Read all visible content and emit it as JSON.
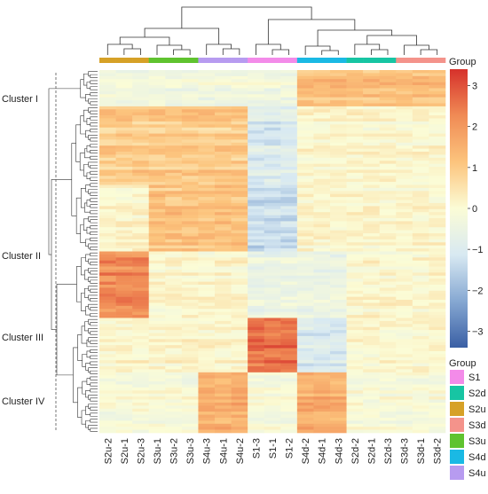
{
  "chart_data": {
    "type": "heatmap",
    "columns": [
      "S2u-2",
      "S2u-1",
      "S2u-3",
      "S3u-1",
      "S3u-2",
      "S3u-3",
      "S4u-3",
      "S4u-1",
      "S4u-2",
      "S1-3",
      "S1-1",
      "S1-2",
      "S4d-2",
      "S4d-1",
      "S4d-3",
      "S2d-2",
      "S2d-1",
      "S2d-3",
      "S3d-3",
      "S3d-1",
      "S3d-2"
    ],
    "column_groups": [
      "S2u",
      "S2u",
      "S2u",
      "S3u",
      "S3u",
      "S3u",
      "S4u",
      "S4u",
      "S4u",
      "S1",
      "S1",
      "S1",
      "S4d",
      "S4d",
      "S4d",
      "S2d",
      "S2d",
      "S2d",
      "S3d",
      "S3d",
      "S3d"
    ],
    "n_rows": 120,
    "row_clusters": [
      {
        "name": "Cluster I",
        "start": 0,
        "end": 12
      },
      {
        "name": "Cluster II",
        "start": 12,
        "end": 60
      },
      {
        "name": "Cluster III",
        "start": 60,
        "end": 82
      },
      {
        "name": "Cluster IV",
        "start": 82,
        "end": 120
      }
    ],
    "block_pattern": [
      {
        "rows": "0-12",
        "cols": "S4d, S2d, S3d",
        "value": 1.3
      },
      {
        "rows": "0-12",
        "cols": "S2u, S3u, S4u, S1",
        "value": -0.3
      },
      {
        "rows": "12-38",
        "cols": "S2u, S3u, S4u",
        "value": 1.0
      },
      {
        "rows": "12-38",
        "cols": "S1",
        "value": -1.0
      },
      {
        "rows": "38-60",
        "cols": "S3u, S4u",
        "value": 1.1
      },
      {
        "rows": "38-60",
        "cols": "S1",
        "value": -1.4
      },
      {
        "rows": "60-82",
        "cols": "S2u",
        "value": 2.2
      },
      {
        "rows": "60-82",
        "cols": "S1, S4d",
        "value": -0.5
      },
      {
        "rows": "82-100",
        "cols": "S1",
        "value": 2.6
      },
      {
        "rows": "82-100",
        "cols": "S4d",
        "value": -1.0
      },
      {
        "rows": "100-120",
        "cols": "S4u, S4d",
        "value": 1.6
      },
      {
        "rows": "100-120",
        "cols": "S2u, S3u, S1, S2d, S3d",
        "value": -0.1
      }
    ],
    "scale": {
      "title": "Group",
      "ticks": [
        3,
        2,
        1,
        0,
        -1,
        -2,
        -3
      ],
      "min": -3.4,
      "max": 3.4,
      "colors": [
        "#3a5fa4",
        "#86a8d2",
        "#d8e9f2",
        "#fbfcd6",
        "#fcc47d",
        "#f08b55",
        "#d6312b"
      ]
    },
    "top_bar_title": "Group",
    "legend": {
      "title": "Group",
      "items": [
        {
          "label": "S1",
          "color": "#f38be9"
        },
        {
          "label": "S2d",
          "color": "#17c5a3"
        },
        {
          "label": "S2u",
          "color": "#d6a127"
        },
        {
          "label": "S3d",
          "color": "#f4938b"
        },
        {
          "label": "S3u",
          "color": "#5fc32f"
        },
        {
          "label": "S4d",
          "color": "#1ab9e4"
        },
        {
          "label": "S4u",
          "color": "#b79bf0"
        }
      ]
    }
  }
}
